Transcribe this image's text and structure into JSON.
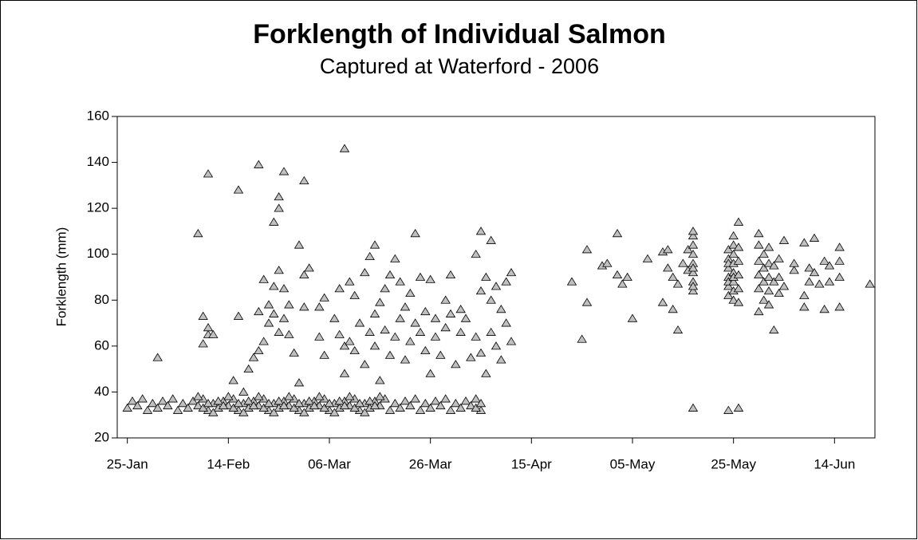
{
  "chart_data": {
    "type": "scatter",
    "title": "Forklength of Individual Salmon",
    "subtitle": "Captured at Waterford - 2006",
    "ylabel": "Forklength (mm)",
    "marker": "triangle",
    "color": "#c0c0c0",
    "xlim": [
      "23-Jan",
      "22-Jun"
    ],
    "xticks": [
      "25-Jan",
      "14-Feb",
      "06-Mar",
      "26-Mar",
      "15-Apr",
      "05-May",
      "25-May",
      "14-Jun"
    ],
    "ylim": [
      20,
      160
    ],
    "yticks": [
      20,
      40,
      60,
      80,
      100,
      120,
      140,
      160
    ],
    "x": [
      "25-Jan",
      "26-Jan",
      "27-Jan",
      "28-Jan",
      "29-Jan",
      "30-Jan",
      "31-Jan",
      "01-Feb",
      "02-Feb",
      "03-Feb",
      "04-Feb",
      "05-Feb",
      "06-Feb",
      "07-Feb",
      "08-Feb",
      "09-Feb",
      "10-Feb",
      "11-Feb",
      "12-Feb",
      "13-Feb",
      "14-Feb",
      "15-Feb",
      "16-Feb",
      "17-Feb",
      "18-Feb",
      "19-Feb",
      "20-Feb",
      "21-Feb",
      "22-Feb",
      "23-Feb",
      "24-Feb",
      "25-Feb",
      "26-Feb",
      "27-Feb",
      "28-Feb",
      "01-Mar",
      "02-Mar",
      "03-Mar",
      "04-Mar",
      "05-Mar",
      "06-Mar",
      "07-Mar",
      "08-Mar",
      "09-Mar",
      "10-Mar",
      "11-Mar",
      "12-Mar",
      "13-Mar",
      "14-Mar",
      "15-Mar",
      "16-Mar",
      "17-Mar",
      "18-Mar",
      "19-Mar",
      "20-Mar",
      "21-Mar",
      "22-Mar",
      "23-Mar",
      "24-Mar",
      "25-Mar",
      "26-Mar",
      "27-Mar",
      "28-Mar",
      "29-Mar",
      "30-Mar",
      "31-Mar",
      "01-Apr",
      "02-Apr",
      "03-Apr",
      "04-Apr",
      "05-Apr",
      "08-Feb",
      "09-Feb",
      "10-Feb",
      "11-Feb",
      "12-Feb",
      "13-Feb",
      "14-Feb",
      "15-Feb",
      "16-Feb",
      "17-Feb",
      "18-Feb",
      "19-Feb",
      "20-Feb",
      "21-Feb",
      "22-Feb",
      "23-Feb",
      "24-Feb",
      "25-Feb",
      "26-Feb",
      "27-Feb",
      "28-Feb",
      "01-Mar",
      "02-Mar",
      "03-Mar",
      "04-Mar",
      "05-Mar",
      "06-Mar",
      "07-Mar",
      "08-Mar",
      "09-Mar",
      "10-Mar",
      "11-Mar",
      "12-Mar",
      "13-Mar",
      "14-Mar",
      "15-Mar",
      "16-Mar",
      "31-Jan",
      "08-Feb",
      "10-Feb",
      "16-Feb",
      "20-Feb",
      "25-Feb",
      "24-Feb",
      "24-Feb",
      "23-Feb",
      "01-Mar",
      "28-Feb",
      "09-Mar",
      "15-Mar",
      "23-Mar",
      "05-Apr",
      "07-Apr",
      "10-Feb",
      "10-Feb",
      "09-Feb",
      "11-Feb",
      "09-Feb",
      "16-Feb",
      "15-Feb",
      "17-Feb",
      "18-Feb",
      "19-Feb",
      "20-Feb",
      "20-Feb",
      "21-Feb",
      "21-Feb",
      "22-Feb",
      "22-Feb",
      "23-Feb",
      "23-Feb",
      "24-Feb",
      "24-Feb",
      "25-Feb",
      "25-Feb",
      "26-Feb",
      "26-Feb",
      "27-Feb",
      "28-Feb",
      "01-Mar",
      "01-Mar",
      "02-Mar",
      "04-Mar",
      "04-Mar",
      "05-Mar",
      "05-Mar",
      "07-Mar",
      "08-Mar",
      "08-Mar",
      "09-Mar",
      "09-Mar",
      "10-Mar",
      "10-Mar",
      "11-Mar",
      "11-Mar",
      "12-Mar",
      "13-Mar",
      "13-Mar",
      "14-Mar",
      "14-Mar",
      "15-Mar",
      "15-Mar",
      "16-Mar",
      "16-Mar",
      "17-Mar",
      "17-Mar",
      "18-Mar",
      "18-Mar",
      "19-Mar",
      "19-Mar",
      "20-Mar",
      "20-Mar",
      "21-Mar",
      "21-Mar",
      "22-Mar",
      "22-Mar",
      "23-Mar",
      "24-Mar",
      "24-Mar",
      "25-Mar",
      "25-Mar",
      "26-Mar",
      "26-Mar",
      "27-Mar",
      "27-Mar",
      "28-Mar",
      "29-Mar",
      "29-Mar",
      "30-Mar",
      "30-Mar",
      "31-Mar",
      "01-Apr",
      "01-Apr",
      "02-Apr",
      "03-Apr",
      "04-Apr",
      "04-Apr",
      "05-Apr",
      "05-Apr",
      "06-Apr",
      "06-Apr",
      "07-Apr",
      "07-Apr",
      "08-Apr",
      "08-Apr",
      "09-Apr",
      "09-Apr",
      "10-Apr",
      "10-Apr",
      "11-Apr",
      "11-Apr",
      "04-Apr",
      "05-Apr",
      "23-Apr",
      "25-Apr",
      "26-Apr",
      "26-Apr",
      "29-Apr",
      "30-Apr",
      "02-May",
      "02-May",
      "03-May",
      "04-May",
      "05-May",
      "08-May",
      "11-May",
      "11-May",
      "12-May",
      "12-May",
      "13-May",
      "13-May",
      "14-May",
      "14-May",
      "15-May",
      "16-May",
      "16-May",
      "17-May",
      "17-May",
      "17-May",
      "17-May",
      "17-May",
      "17-May",
      "17-May",
      "17-May",
      "17-May",
      "17-May",
      "17-May",
      "24-May",
      "24-May",
      "24-May",
      "24-May",
      "24-May",
      "24-May",
      "24-May",
      "24-May",
      "24-May",
      "25-May",
      "25-May",
      "25-May",
      "25-May",
      "25-May",
      "25-May",
      "25-May",
      "25-May",
      "25-May",
      "26-May",
      "26-May",
      "26-May",
      "26-May",
      "26-May",
      "26-May",
      "26-May",
      "30-May",
      "30-May",
      "30-May",
      "30-May",
      "30-May",
      "30-May",
      "31-May",
      "31-May",
      "31-May",
      "31-May",
      "01-Jun",
      "01-Jun",
      "01-Jun",
      "01-Jun",
      "01-Jun",
      "02-Jun",
      "02-Jun",
      "02-Jun",
      "03-Jun",
      "03-Jun",
      "03-Jun",
      "04-Jun",
      "04-Jun",
      "06-Jun",
      "06-Jun",
      "08-Jun",
      "08-Jun",
      "08-Jun",
      "09-Jun",
      "09-Jun",
      "10-Jun",
      "10-Jun",
      "11-Jun",
      "12-Jun",
      "12-Jun",
      "13-Jun",
      "13-Jun",
      "15-Jun",
      "15-Jun",
      "15-Jun",
      "15-Jun",
      "21-Jun"
    ],
    "values": [
      33,
      36,
      34,
      37,
      32,
      35,
      33,
      36,
      34,
      37,
      32,
      35,
      33,
      36,
      34,
      37,
      32,
      35,
      33,
      36,
      34,
      37,
      32,
      35,
      33,
      36,
      34,
      37,
      32,
      35,
      33,
      36,
      34,
      37,
      32,
      35,
      33,
      36,
      34,
      37,
      32,
      35,
      33,
      36,
      34,
      37,
      32,
      35,
      33,
      36,
      34,
      37,
      32,
      35,
      33,
      36,
      34,
      37,
      32,
      35,
      33,
      36,
      34,
      37,
      32,
      35,
      33,
      36,
      34,
      37,
      32,
      38,
      33,
      35,
      31,
      36,
      34,
      38,
      33,
      35,
      31,
      36,
      34,
      38,
      33,
      35,
      31,
      36,
      34,
      38,
      33,
      35,
      31,
      36,
      34,
      38,
      33,
      35,
      31,
      36,
      34,
      38,
      33,
      35,
      31,
      36,
      34,
      38,
      55,
      109,
      135,
      128,
      139,
      136,
      125,
      120,
      114,
      132,
      104,
      146,
      104,
      109,
      110,
      106,
      65,
      68,
      61,
      65,
      73,
      73,
      45,
      40,
      50,
      55,
      58,
      75,
      62,
      89,
      70,
      78,
      74,
      86,
      66,
      93,
      85,
      72,
      65,
      78,
      57,
      44,
      91,
      77,
      94,
      64,
      77,
      81,
      56,
      72,
      65,
      85,
      60,
      48,
      88,
      62,
      82,
      58,
      70,
      92,
      52,
      99,
      66,
      74,
      60,
      79,
      45,
      67,
      85,
      91,
      56,
      98,
      64,
      88,
      72,
      54,
      77,
      83,
      62,
      70,
      66,
      90,
      58,
      75,
      89,
      48,
      72,
      64,
      56,
      80,
      68,
      91,
      74,
      52,
      76,
      66,
      72,
      55,
      100,
      64,
      84,
      57,
      90,
      48,
      80,
      66,
      86,
      60,
      76,
      54,
      88,
      70,
      92,
      62,
      33,
      35,
      88,
      63,
      79,
      102,
      95,
      96,
      109,
      91,
      87,
      90,
      72,
      98,
      101,
      79,
      102,
      94,
      90,
      76,
      87,
      67,
      96,
      102,
      93,
      84,
      88,
      92,
      96,
      100,
      104,
      108,
      110,
      86,
      94,
      33,
      82,
      86,
      90,
      94,
      98,
      102,
      88,
      96,
      32,
      80,
      84,
      88,
      92,
      96,
      100,
      104,
      108,
      90,
      79,
      85,
      91,
      97,
      103,
      114,
      33,
      75,
      85,
      91,
      97,
      104,
      109,
      80,
      88,
      94,
      100,
      78,
      84,
      90,
      96,
      103,
      67,
      88,
      95,
      83,
      90,
      98,
      86,
      106,
      93,
      96,
      105,
      82,
      77,
      94,
      88,
      107,
      92,
      87,
      76,
      97,
      88,
      95,
      103,
      97,
      77,
      90,
      87
    ]
  }
}
